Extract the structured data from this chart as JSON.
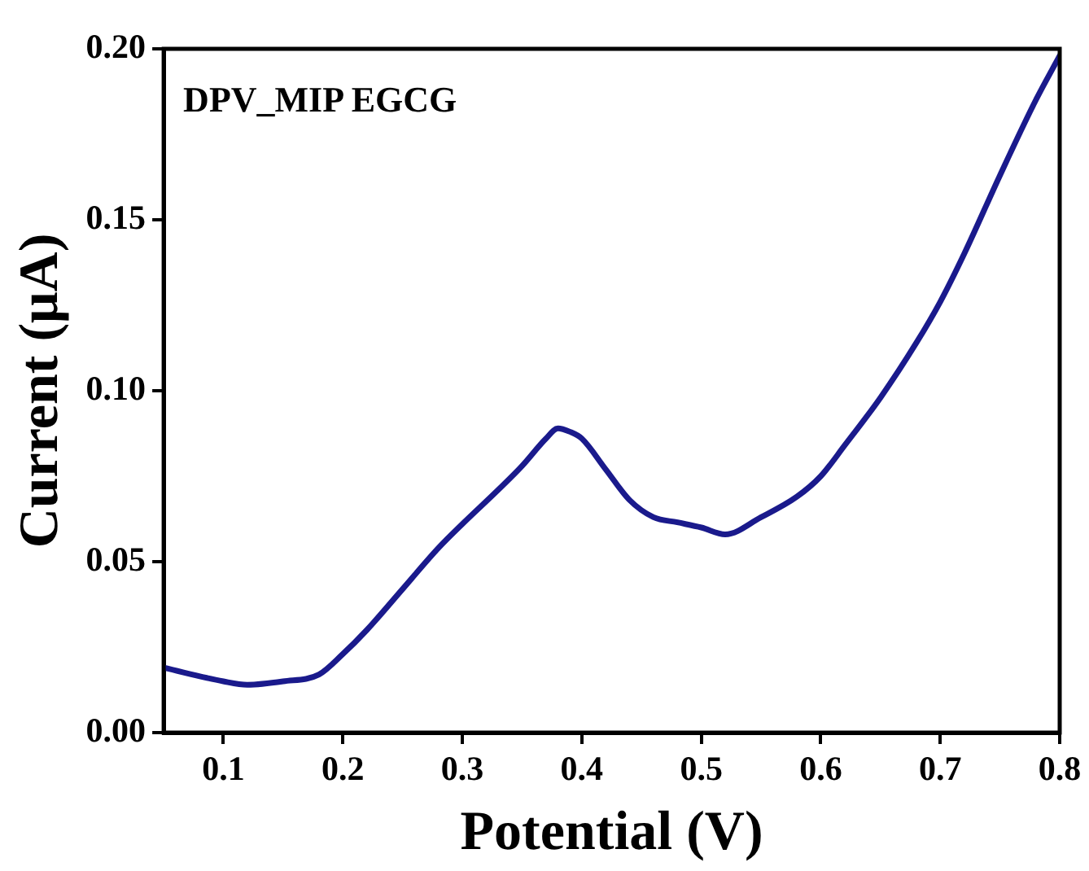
{
  "chart_data": {
    "type": "line",
    "xlabel": "Potential (V)",
    "ylabel": "Current (μA)",
    "annotations": [
      "DPV_MIP EGCG"
    ],
    "x": [
      0.05,
      0.1,
      0.12,
      0.15,
      0.18,
      0.2,
      0.22,
      0.25,
      0.28,
      0.3,
      0.33,
      0.35,
      0.37,
      0.38,
      0.39,
      0.4,
      0.42,
      0.44,
      0.46,
      0.48,
      0.5,
      0.52,
      0.55,
      0.58,
      0.6,
      0.62,
      0.65,
      0.68,
      0.7,
      0.72,
      0.75,
      0.78,
      0.8
    ],
    "series": [
      {
        "color": "#1a1a8c",
        "values": [
          0.019,
          0.015,
          0.014,
          0.015,
          0.017,
          0.023,
          0.03,
          0.042,
          0.054,
          0.061,
          0.071,
          0.078,
          0.086,
          0.089,
          0.088,
          0.086,
          0.077,
          0.068,
          0.063,
          0.0615,
          0.06,
          0.058,
          0.063,
          0.069,
          0.075,
          0.084,
          0.098,
          0.114,
          0.126,
          0.14,
          0.163,
          0.185,
          0.198
        ]
      }
    ],
    "xlim": [
      0.05,
      0.8
    ],
    "xticks": [
      0.1,
      0.2,
      0.3,
      0.4,
      0.5,
      0.6,
      0.7,
      0.8
    ],
    "ylim": [
      0,
      0.2
    ],
    "yticks": [
      {
        "value": 0,
        "label": "0.00"
      },
      {
        "value": 0.05,
        "label": "0.05"
      },
      {
        "value": 0.1,
        "label": "0.10"
      },
      {
        "value": 0.15,
        "label": "0.15"
      },
      {
        "value": 0.2,
        "label": "0.20"
      }
    ],
    "grid": false,
    "legend": false,
    "marker": "none",
    "line_style": "solid"
  }
}
